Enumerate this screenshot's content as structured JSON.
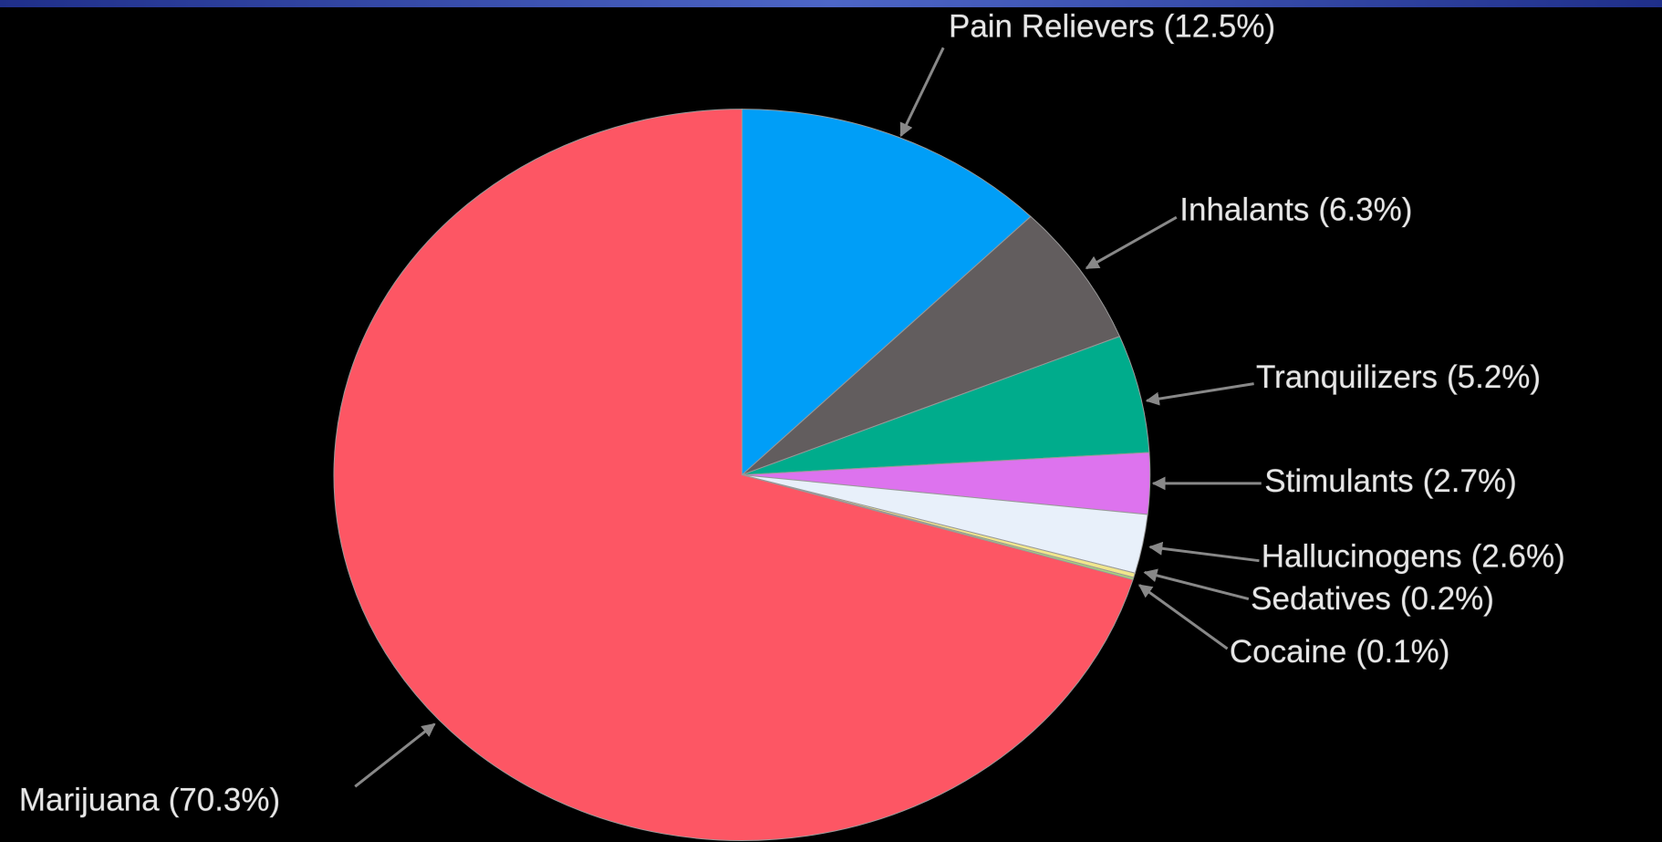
{
  "chart_data": {
    "type": "pie",
    "categories": [
      "Pain Relievers",
      "Inhalants",
      "Tranquilizers",
      "Stimulants",
      "Hallucinogens",
      "Sedatives",
      "Cocaine",
      "Marijuana"
    ],
    "values": [
      12.5,
      6.3,
      5.2,
      2.7,
      2.6,
      0.2,
      0.1,
      70.3
    ],
    "value_labels": [
      "(12.5%)",
      "(6.3%)",
      "(5.2%)",
      "(2.7%)",
      "(2.6%)",
      "(0.2%)",
      "(0.1%)",
      "(70.3%)"
    ],
    "colors": [
      "#009ef7",
      "#625d5e",
      "#00ac8c",
      "#dd73ee",
      "#e8f0fa",
      "#f0e68c",
      "#a8d878",
      "#fd5664"
    ]
  }
}
